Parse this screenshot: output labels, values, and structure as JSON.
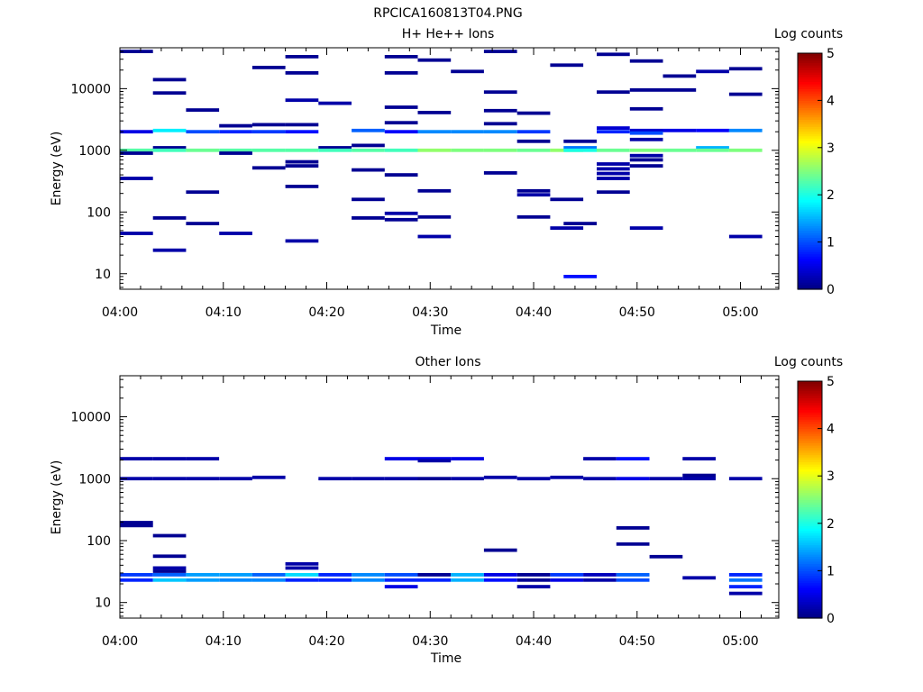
{
  "figure": {
    "title": "RPCICA160813T04.PNG"
  },
  "colorscale": {
    "stops": [
      "#00007f",
      "#0000ff",
      "#007fff",
      "#00ffff",
      "#7fff7f",
      "#ffff00",
      "#ff7f00",
      "#ff0000",
      "#7f0000"
    ]
  },
  "chart_data": [
    {
      "type": "heatmap",
      "title": "H+ He++ Ions",
      "xlabel": "Time",
      "ylabel": "Energy (eV)",
      "yscale": "log",
      "xlim": [
        "04:00",
        "05:03.7"
      ],
      "ylim": [
        5.6,
        46000
      ],
      "xticks": [
        "04:00",
        "04:10",
        "04:20",
        "04:30",
        "04:40",
        "04:50",
        "05:00"
      ],
      "yticks": [
        10,
        100,
        1000,
        10000
      ],
      "colorbar": {
        "label": "Log counts",
        "range": [
          0,
          5
        ],
        "ticks": [
          0,
          1,
          2,
          3,
          4,
          5
        ]
      },
      "cell_width_min": 3.2,
      "cells": [
        {
          "t": "04:00.0",
          "e": 40000,
          "v": 0.1
        },
        {
          "t": "04:00.0",
          "e": 2000,
          "v": 0.5
        },
        {
          "t": "04:00.0",
          "e": 1000,
          "v": 2.3
        },
        {
          "t": "04:00.0",
          "e": 900,
          "v": 0.1
        },
        {
          "t": "04:00.0",
          "e": 350,
          "v": 0.2
        },
        {
          "t": "04:00.0",
          "e": 45,
          "v": 0.2
        },
        {
          "t": "04:03.2",
          "e": 14000,
          "v": 0.1
        },
        {
          "t": "04:03.2",
          "e": 8500,
          "v": 0.1
        },
        {
          "t": "04:03.2",
          "e": 2100,
          "v": 1.8
        },
        {
          "t": "04:03.2",
          "e": 1100,
          "v": 0.1
        },
        {
          "t": "04:03.2",
          "e": 1000,
          "v": 2.2
        },
        {
          "t": "04:03.2",
          "e": 80,
          "v": 0.1
        },
        {
          "t": "04:03.2",
          "e": 24,
          "v": 0.2
        },
        {
          "t": "04:06.4",
          "e": 4500,
          "v": 0.1
        },
        {
          "t": "04:06.4",
          "e": 2000,
          "v": 1.0
        },
        {
          "t": "04:06.4",
          "e": 1000,
          "v": 2.4
        },
        {
          "t": "04:06.4",
          "e": 210,
          "v": 0.1
        },
        {
          "t": "04:06.4",
          "e": 65,
          "v": 0.1
        },
        {
          "t": "04:09.6",
          "e": 2500,
          "v": 0.1
        },
        {
          "t": "04:09.6",
          "e": 2000,
          "v": 0.8
        },
        {
          "t": "04:09.6",
          "e": 1000,
          "v": 2.3
        },
        {
          "t": "04:09.6",
          "e": 900,
          "v": 0.1
        },
        {
          "t": "04:09.6",
          "e": 45,
          "v": 0.2
        },
        {
          "t": "04:12.8",
          "e": 22000,
          "v": 0.1
        },
        {
          "t": "04:12.8",
          "e": 2600,
          "v": 0.1
        },
        {
          "t": "04:12.8",
          "e": 2000,
          "v": 0.9
        },
        {
          "t": "04:12.8",
          "e": 1000,
          "v": 2.3
        },
        {
          "t": "04:12.8",
          "e": 520,
          "v": 0.1
        },
        {
          "t": "04:16.0",
          "e": 33000,
          "v": 0.1
        },
        {
          "t": "04:16.0",
          "e": 18000,
          "v": 0.1
        },
        {
          "t": "04:16.0",
          "e": 6500,
          "v": 0.2
        },
        {
          "t": "04:16.0",
          "e": 2600,
          "v": 0.1
        },
        {
          "t": "04:16.0",
          "e": 2000,
          "v": 0.7
        },
        {
          "t": "04:16.0",
          "e": 1000,
          "v": 2.3
        },
        {
          "t": "04:16.0",
          "e": 650,
          "v": 0.1
        },
        {
          "t": "04:16.0",
          "e": 560,
          "v": 0.1
        },
        {
          "t": "04:16.0",
          "e": 260,
          "v": 0.1
        },
        {
          "t": "04:16.0",
          "e": 34,
          "v": 0.2
        },
        {
          "t": "04:19.2",
          "e": 5800,
          "v": 0.2
        },
        {
          "t": "04:19.2",
          "e": 1100,
          "v": 0.1
        },
        {
          "t": "04:19.2",
          "e": 1000,
          "v": 2.2
        },
        {
          "t": "04:22.4",
          "e": 2100,
          "v": 1.1
        },
        {
          "t": "04:22.4",
          "e": 1200,
          "v": 0.1
        },
        {
          "t": "04:22.4",
          "e": 1000,
          "v": 2.3
        },
        {
          "t": "04:22.4",
          "e": 480,
          "v": 0.1
        },
        {
          "t": "04:22.4",
          "e": 160,
          "v": 0.1
        },
        {
          "t": "04:22.4",
          "e": 80,
          "v": 0.1
        },
        {
          "t": "04:25.6",
          "e": 33000,
          "v": 0.1
        },
        {
          "t": "04:25.6",
          "e": 18000,
          "v": 0.1
        },
        {
          "t": "04:25.6",
          "e": 5000,
          "v": 0.1
        },
        {
          "t": "04:25.6",
          "e": 2800,
          "v": 0.1
        },
        {
          "t": "04:25.6",
          "e": 2000,
          "v": 0.6
        },
        {
          "t": "04:25.6",
          "e": 1000,
          "v": 2.2
        },
        {
          "t": "04:25.6",
          "e": 400,
          "v": 0.1
        },
        {
          "t": "04:25.6",
          "e": 95,
          "v": 0.2
        },
        {
          "t": "04:25.6",
          "e": 75,
          "v": 0.1
        },
        {
          "t": "04:28.8",
          "e": 29000,
          "v": 0.1
        },
        {
          "t": "04:28.8",
          "e": 4100,
          "v": 0.1
        },
        {
          "t": "04:28.8",
          "e": 2000,
          "v": 1.3
        },
        {
          "t": "04:28.8",
          "e": 1000,
          "v": 2.6
        },
        {
          "t": "04:28.8",
          "e": 220,
          "v": 0.1
        },
        {
          "t": "04:28.8",
          "e": 83,
          "v": 0.1
        },
        {
          "t": "04:28.8",
          "e": 40,
          "v": 0.2
        },
        {
          "t": "04:32.0",
          "e": 19000,
          "v": 0.1
        },
        {
          "t": "04:32.0",
          "e": 2000,
          "v": 1.3
        },
        {
          "t": "04:32.0",
          "e": 1000,
          "v": 2.5
        },
        {
          "t": "04:35.2",
          "e": 40000,
          "v": 0.1
        },
        {
          "t": "04:35.2",
          "e": 8800,
          "v": 0.1
        },
        {
          "t": "04:35.2",
          "e": 4400,
          "v": 0.1
        },
        {
          "t": "04:35.2",
          "e": 2700,
          "v": 0.1
        },
        {
          "t": "04:35.2",
          "e": 2000,
          "v": 1.3
        },
        {
          "t": "04:35.2",
          "e": 1000,
          "v": 2.5
        },
        {
          "t": "04:35.2",
          "e": 430,
          "v": 0.1
        },
        {
          "t": "04:38.4",
          "e": 4000,
          "v": 0.1
        },
        {
          "t": "04:38.4",
          "e": 2000,
          "v": 0.9
        },
        {
          "t": "04:38.4",
          "e": 1400,
          "v": 0.1
        },
        {
          "t": "04:38.4",
          "e": 1000,
          "v": 2.4
        },
        {
          "t": "04:38.4",
          "e": 220,
          "v": 0.1
        },
        {
          "t": "04:38.4",
          "e": 190,
          "v": 0.2
        },
        {
          "t": "04:38.4",
          "e": 83,
          "v": 0.1
        },
        {
          "t": "04:41.6",
          "e": 24000,
          "v": 0.1
        },
        {
          "t": "04:41.6",
          "e": 1000,
          "v": 2.6
        },
        {
          "t": "04:41.6",
          "e": 160,
          "v": 0.1
        },
        {
          "t": "04:41.6",
          "e": 55,
          "v": 0.2
        },
        {
          "t": "04:42.9",
          "e": 1400,
          "v": 0.1
        },
        {
          "t": "04:42.9",
          "e": 1100,
          "v": 1.2
        },
        {
          "t": "04:42.9",
          "e": 1000,
          "v": 2.0
        },
        {
          "t": "04:42.9",
          "e": 65,
          "v": 0.1
        },
        {
          "t": "04:42.9",
          "e": 9,
          "v": 0.7
        },
        {
          "t": "04:46.1",
          "e": 36000,
          "v": 0.1
        },
        {
          "t": "04:46.1",
          "e": 8800,
          "v": 0.1
        },
        {
          "t": "04:46.1",
          "e": 2300,
          "v": 0.4
        },
        {
          "t": "04:46.1",
          "e": 2000,
          "v": 0.8
        },
        {
          "t": "04:46.1",
          "e": 1000,
          "v": 2.4
        },
        {
          "t": "04:46.1",
          "e": 600,
          "v": 0.2
        },
        {
          "t": "04:46.1",
          "e": 500,
          "v": 0.2
        },
        {
          "t": "04:46.1",
          "e": 420,
          "v": 0.2
        },
        {
          "t": "04:46.1",
          "e": 350,
          "v": 0.2
        },
        {
          "t": "04:46.1",
          "e": 210,
          "v": 0.1
        },
        {
          "t": "04:49.3",
          "e": 28000,
          "v": 0.1
        },
        {
          "t": "04:49.3",
          "e": 9500,
          "v": 0.1
        },
        {
          "t": "04:49.3",
          "e": 4700,
          "v": 0.1
        },
        {
          "t": "04:49.3",
          "e": 2100,
          "v": 0.4
        },
        {
          "t": "04:49.3",
          "e": 1900,
          "v": 1.0
        },
        {
          "t": "04:49.3",
          "e": 1500,
          "v": 0.2
        },
        {
          "t": "04:49.3",
          "e": 1000,
          "v": 2.5
        },
        {
          "t": "04:49.3",
          "e": 820,
          "v": 0.2
        },
        {
          "t": "04:49.3",
          "e": 700,
          "v": 0.1
        },
        {
          "t": "04:49.3",
          "e": 560,
          "v": 0.1
        },
        {
          "t": "04:49.3",
          "e": 55,
          "v": 0.2
        },
        {
          "t": "04:52.5",
          "e": 16000,
          "v": 0.1
        },
        {
          "t": "04:52.5",
          "e": 9500,
          "v": 0.1
        },
        {
          "t": "04:52.5",
          "e": 2100,
          "v": 0.5
        },
        {
          "t": "04:52.5",
          "e": 1000,
          "v": 2.4
        },
        {
          "t": "04:55.7",
          "e": 19000,
          "v": 0.2
        },
        {
          "t": "04:55.7",
          "e": 2100,
          "v": 0.6
        },
        {
          "t": "04:55.7",
          "e": 1100,
          "v": 1.5
        },
        {
          "t": "04:55.7",
          "e": 1000,
          "v": 2.4
        },
        {
          "t": "04:58.9",
          "e": 21000,
          "v": 0.1
        },
        {
          "t": "04:58.9",
          "e": 8100,
          "v": 0.1
        },
        {
          "t": "04:58.9",
          "e": 2100,
          "v": 1.3
        },
        {
          "t": "04:58.9",
          "e": 1000,
          "v": 2.5
        },
        {
          "t": "04:58.9",
          "e": 40,
          "v": 0.2
        }
      ]
    },
    {
      "type": "heatmap",
      "title": "Other Ions",
      "xlabel": "Time",
      "ylabel": "Energy (eV)",
      "yscale": "log",
      "xlim": [
        "04:00",
        "05:03.7"
      ],
      "ylim": [
        5.6,
        46000
      ],
      "xticks": [
        "04:00",
        "04:10",
        "04:20",
        "04:30",
        "04:40",
        "04:50",
        "05:00"
      ],
      "yticks": [
        10,
        100,
        1000,
        10000
      ],
      "colorbar": {
        "label": "Log counts",
        "range": [
          0,
          5
        ],
        "ticks": [
          0,
          1,
          2,
          3,
          4,
          5
        ]
      },
      "cell_width_min": 3.2,
      "cells": [
        {
          "t": "04:00.0",
          "e": 2100,
          "v": 0.2
        },
        {
          "t": "04:00.0",
          "e": 1000,
          "v": 0.2
        },
        {
          "t": "04:00.0",
          "e": 195,
          "v": 0.1
        },
        {
          "t": "04:00.0",
          "e": 175,
          "v": 0.1
        },
        {
          "t": "04:00.0",
          "e": 28,
          "v": 0.9
        },
        {
          "t": "04:00.0",
          "e": 23,
          "v": 0.8
        },
        {
          "t": "04:03.2",
          "e": 2100,
          "v": 0.2
        },
        {
          "t": "04:03.2",
          "e": 1000,
          "v": 0.2
        },
        {
          "t": "04:03.2",
          "e": 120,
          "v": 0.1
        },
        {
          "t": "04:03.2",
          "e": 56,
          "v": 0.1
        },
        {
          "t": "04:03.2",
          "e": 36,
          "v": 0.2
        },
        {
          "t": "04:03.2",
          "e": 32,
          "v": 0.1
        },
        {
          "t": "04:03.2",
          "e": 28,
          "v": 1.1
        },
        {
          "t": "04:03.2",
          "e": 23,
          "v": 1.6
        },
        {
          "t": "04:06.4",
          "e": 2100,
          "v": 0.2
        },
        {
          "t": "04:06.4",
          "e": 1000,
          "v": 0.2
        },
        {
          "t": "04:06.4",
          "e": 28,
          "v": 1.4
        },
        {
          "t": "04:06.4",
          "e": 23,
          "v": 1.4
        },
        {
          "t": "04:09.6",
          "e": 1000,
          "v": 0.2
        },
        {
          "t": "04:09.6",
          "e": 28,
          "v": 1.4
        },
        {
          "t": "04:09.6",
          "e": 23,
          "v": 1.3
        },
        {
          "t": "04:12.8",
          "e": 1050,
          "v": 0.2
        },
        {
          "t": "04:12.8",
          "e": 28,
          "v": 1.1
        },
        {
          "t": "04:12.8",
          "e": 23,
          "v": 1.3
        },
        {
          "t": "04:16.0",
          "e": 42,
          "v": 0.2
        },
        {
          "t": "04:16.0",
          "e": 36,
          "v": 0.2
        },
        {
          "t": "04:16.0",
          "e": 28,
          "v": 1.7
        },
        {
          "t": "04:16.0",
          "e": 23,
          "v": 0.8
        },
        {
          "t": "04:19.2",
          "e": 1000,
          "v": 0.2
        },
        {
          "t": "04:19.2",
          "e": 28,
          "v": 0.8
        },
        {
          "t": "04:19.2",
          "e": 23,
          "v": 0.8
        },
        {
          "t": "04:22.4",
          "e": 1000,
          "v": 0.2
        },
        {
          "t": "04:22.4",
          "e": 28,
          "v": 1.3
        },
        {
          "t": "04:22.4",
          "e": 23,
          "v": 1.3
        },
        {
          "t": "04:25.6",
          "e": 2100,
          "v": 0.5
        },
        {
          "t": "04:25.6",
          "e": 1000,
          "v": 0.2
        },
        {
          "t": "04:25.6",
          "e": 28,
          "v": 1.0
        },
        {
          "t": "04:25.6",
          "e": 23,
          "v": 0.8
        },
        {
          "t": "04:25.6",
          "e": 18,
          "v": 0.5
        },
        {
          "t": "04:28.8",
          "e": 2100,
          "v": 0.5
        },
        {
          "t": "04:28.8",
          "e": 1950,
          "v": 0.2
        },
        {
          "t": "04:28.8",
          "e": 1000,
          "v": 0.1
        },
        {
          "t": "04:28.8",
          "e": 28,
          "v": 0.1
        },
        {
          "t": "04:28.8",
          "e": 23,
          "v": 0.8
        },
        {
          "t": "04:32.0",
          "e": 2100,
          "v": 0.5
        },
        {
          "t": "04:32.0",
          "e": 1000,
          "v": 0.2
        },
        {
          "t": "04:32.0",
          "e": 28,
          "v": 1.5
        },
        {
          "t": "04:32.0",
          "e": 23,
          "v": 1.5
        },
        {
          "t": "04:35.2",
          "e": 1050,
          "v": 0.2
        },
        {
          "t": "04:35.2",
          "e": 70,
          "v": 0.1
        },
        {
          "t": "04:35.2",
          "e": 28,
          "v": 0.5
        },
        {
          "t": "04:35.2",
          "e": 23,
          "v": 0.7
        },
        {
          "t": "04:38.4",
          "e": 1000,
          "v": 0.2
        },
        {
          "t": "04:38.4",
          "e": 28,
          "v": 0.1
        },
        {
          "t": "04:38.4",
          "e": 23,
          "v": 0.1
        },
        {
          "t": "04:38.4",
          "e": 18,
          "v": 0.2
        },
        {
          "t": "04:41.6",
          "e": 1050,
          "v": 0.2
        },
        {
          "t": "04:41.6",
          "e": 28,
          "v": 0.9
        },
        {
          "t": "04:41.6",
          "e": 23,
          "v": 0.5
        },
        {
          "t": "04:44.8",
          "e": 2100,
          "v": 0.2
        },
        {
          "t": "04:44.8",
          "e": 1000,
          "v": 0.2
        },
        {
          "t": "04:44.8",
          "e": 28,
          "v": 0.3
        },
        {
          "t": "04:44.8",
          "e": 23,
          "v": 0.2
        },
        {
          "t": "04:48.0",
          "e": 2100,
          "v": 0.7
        },
        {
          "t": "04:48.0",
          "e": 1000,
          "v": 0.5
        },
        {
          "t": "04:48.0",
          "e": 160,
          "v": 0.1
        },
        {
          "t": "04:48.0",
          "e": 88,
          "v": 0.1
        },
        {
          "t": "04:48.0",
          "e": 28,
          "v": 1.1
        },
        {
          "t": "04:48.0",
          "e": 23,
          "v": 1.0
        },
        {
          "t": "04:51.2",
          "e": 1000,
          "v": 0.2
        },
        {
          "t": "04:51.2",
          "e": 55,
          "v": 0.1
        },
        {
          "t": "04:54.4",
          "e": 2100,
          "v": 0.2
        },
        {
          "t": "04:54.4",
          "e": 1130,
          "v": 0.1
        },
        {
          "t": "04:54.4",
          "e": 1000,
          "v": 0.2
        },
        {
          "t": "04:54.4",
          "e": 25,
          "v": 0.2
        },
        {
          "t": "04:58.9",
          "e": 1000,
          "v": 0.2
        },
        {
          "t": "04:58.9",
          "e": 28,
          "v": 0.8
        },
        {
          "t": "04:58.9",
          "e": 23,
          "v": 1.2
        },
        {
          "t": "04:58.9",
          "e": 18,
          "v": 0.8
        },
        {
          "t": "04:58.9",
          "e": 14,
          "v": 0.2
        }
      ]
    }
  ]
}
